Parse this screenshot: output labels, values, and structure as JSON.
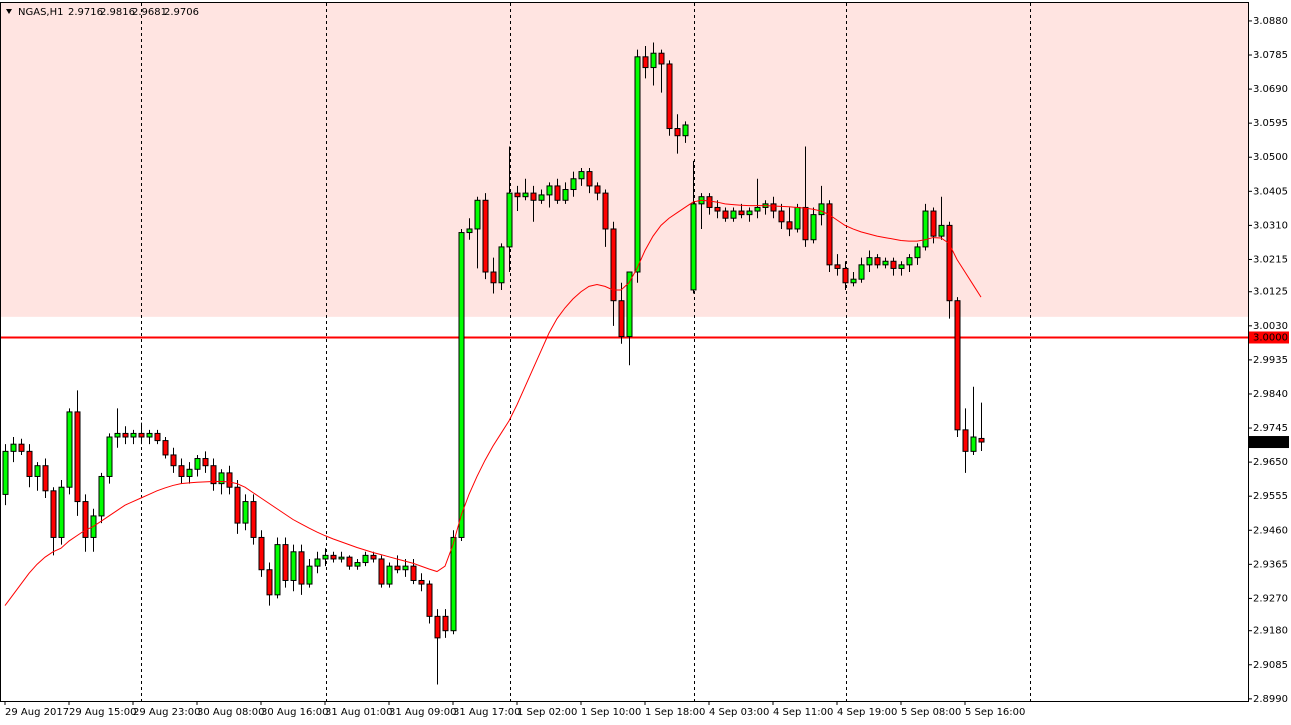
{
  "chart_data": {
    "type": "candlestick",
    "title": "NGAS,H1",
    "ylim": [
      2.8984,
      3.093
    ],
    "yticks": [
      {
        "value": 3.088,
        "label": "3.0880"
      },
      {
        "value": 3.0785,
        "label": "3.0785"
      },
      {
        "value": 3.069,
        "label": "3.0690"
      },
      {
        "value": 3.0595,
        "label": "3.0595"
      },
      {
        "value": 3.05,
        "label": "3.0500"
      },
      {
        "value": 3.0405,
        "label": "3.0405"
      },
      {
        "value": 3.031,
        "label": "3.0310"
      },
      {
        "value": 3.0215,
        "label": "3.0215"
      },
      {
        "value": 3.0125,
        "label": "3.0125"
      },
      {
        "value": 3.003,
        "label": "3.0030"
      },
      {
        "value": 2.9935,
        "label": "2.9935"
      },
      {
        "value": 2.984,
        "label": "2.9840"
      },
      {
        "value": 2.9745,
        "label": "2.9745"
      },
      {
        "value": 2.965,
        "label": "2.9650"
      },
      {
        "value": 2.9555,
        "label": "2.9555"
      },
      {
        "value": 2.946,
        "label": "2.9460"
      },
      {
        "value": 2.9365,
        "label": "2.9365"
      },
      {
        "value": 2.927,
        "label": "2.9270"
      },
      {
        "value": 2.918,
        "label": "2.9180"
      },
      {
        "value": 2.9085,
        "label": "2.9085"
      },
      {
        "value": 2.899,
        "label": "2.8990"
      }
    ],
    "xticks": [
      {
        "value": 0,
        "label": "29 Aug 2017"
      },
      {
        "value": 8,
        "label": "29 Aug 15:00"
      },
      {
        "value": 16,
        "label": "29 Aug 23:00"
      },
      {
        "value": 24,
        "label": "30 Aug 08:00"
      },
      {
        "value": 32,
        "label": "30 Aug 16:00"
      },
      {
        "value": 40,
        "label": "31 Aug 01:00"
      },
      {
        "value": 48,
        "label": "31 Aug 09:00"
      },
      {
        "value": 56,
        "label": "31 Aug 17:00"
      },
      {
        "value": 64,
        "label": "1 Sep 02:00"
      },
      {
        "value": 72,
        "label": "1 Sep 10:00"
      },
      {
        "value": 80,
        "label": "1 Sep 18:00"
      },
      {
        "value": 88,
        "label": "4 Sep 03:00"
      },
      {
        "value": 96,
        "label": "4 Sep 11:00"
      },
      {
        "value": 104,
        "label": "4 Sep 19:00"
      },
      {
        "value": 112,
        "label": "5 Sep 08:00"
      },
      {
        "value": 120,
        "label": "5 Sep 16:00"
      }
    ],
    "up_color": "#00ff00",
    "down_color": "#ff0000",
    "candles": [
      [
        2.956,
        2.97,
        2.953,
        2.968
      ],
      [
        2.968,
        2.972,
        2.965,
        2.97
      ],
      [
        2.97,
        2.9715,
        2.967,
        2.968
      ],
      [
        2.968,
        2.97,
        2.958,
        2.961
      ],
      [
        2.961,
        2.965,
        2.957,
        2.964
      ],
      [
        2.964,
        2.966,
        2.955,
        2.957
      ],
      [
        2.957,
        2.958,
        2.939,
        2.944
      ],
      [
        2.944,
        2.96,
        2.942,
        2.958
      ],
      [
        2.958,
        2.98,
        2.956,
        2.979
      ],
      [
        2.979,
        2.985,
        2.95,
        2.954
      ],
      [
        2.954,
        2.956,
        2.94,
        2.944
      ],
      [
        2.944,
        2.952,
        2.94,
        2.95
      ],
      [
        2.95,
        2.962,
        2.948,
        2.961
      ],
      [
        2.961,
        2.973,
        2.959,
        2.972
      ],
      [
        2.972,
        2.98,
        2.969,
        2.973
      ],
      [
        2.973,
        2.975,
        2.97,
        2.972
      ],
      [
        2.972,
        2.974,
        2.97,
        2.973
      ],
      [
        2.973,
        2.976,
        2.97,
        2.972
      ],
      [
        2.972,
        2.974,
        2.97,
        2.973
      ],
      [
        2.973,
        2.974,
        2.97,
        2.971
      ],
      [
        2.971,
        2.972,
        2.966,
        2.967
      ],
      [
        2.967,
        2.969,
        2.962,
        2.964
      ],
      [
        2.964,
        2.966,
        2.959,
        2.961
      ],
      [
        2.961,
        2.965,
        2.959,
        2.963
      ],
      [
        2.963,
        2.967,
        2.961,
        2.966
      ],
      [
        2.966,
        2.968,
        2.962,
        2.964
      ],
      [
        2.964,
        2.966,
        2.957,
        2.959
      ],
      [
        2.959,
        2.963,
        2.956,
        2.962
      ],
      [
        2.962,
        2.964,
        2.956,
        2.958
      ],
      [
        2.958,
        2.96,
        2.945,
        2.948
      ],
      [
        2.948,
        2.956,
        2.946,
        2.954
      ],
      [
        2.954,
        2.956,
        2.942,
        2.944
      ],
      [
        2.944,
        2.946,
        2.933,
        2.935
      ],
      [
        2.935,
        2.937,
        2.925,
        2.928
      ],
      [
        2.928,
        2.944,
        2.927,
        2.942
      ],
      [
        2.942,
        2.944,
        2.93,
        2.932
      ],
      [
        2.932,
        2.942,
        2.929,
        2.94
      ],
      [
        2.94,
        2.942,
        2.928,
        2.931
      ],
      [
        2.931,
        2.938,
        2.93,
        2.936
      ],
      [
        2.936,
        2.94,
        2.934,
        2.938
      ],
      [
        2.938,
        2.941,
        2.936,
        2.939
      ],
      [
        2.939,
        2.94,
        2.937,
        2.938
      ],
      [
        2.938,
        2.94,
        2.937,
        2.9385
      ],
      [
        2.9385,
        2.939,
        2.935,
        2.936
      ],
      [
        2.936,
        2.938,
        2.935,
        2.937
      ],
      [
        2.937,
        2.94,
        2.936,
        2.939
      ],
      [
        2.939,
        2.94,
        2.937,
        2.938
      ],
      [
        2.938,
        2.939,
        2.93,
        2.931
      ],
      [
        2.931,
        2.937,
        2.93,
        2.936
      ],
      [
        2.936,
        2.939,
        2.934,
        2.935
      ],
      [
        2.935,
        2.938,
        2.933,
        2.936
      ],
      [
        2.936,
        2.938,
        2.931,
        2.932
      ],
      [
        2.932,
        2.934,
        2.929,
        2.931
      ],
      [
        2.931,
        2.932,
        2.92,
        2.922
      ],
      [
        2.922,
        2.924,
        2.903,
        2.916
      ],
      [
        2.922,
        2.924,
        2.916,
        2.918
      ],
      [
        2.918,
        2.946,
        2.917,
        2.944
      ],
      [
        2.944,
        3.03,
        2.943,
        3.029
      ],
      [
        3.029,
        3.033,
        3.027,
        3.03
      ],
      [
        3.03,
        3.039,
        3.019,
        3.038
      ],
      [
        3.038,
        3.04,
        3.016,
        3.018
      ],
      [
        3.018,
        3.022,
        3.012,
        3.015
      ],
      [
        3.015,
        3.026,
        3.013,
        3.025
      ],
      [
        3.025,
        3.053,
        3.018,
        3.04
      ],
      [
        3.04,
        3.042,
        3.035,
        3.039
      ],
      [
        3.039,
        3.044,
        3.038,
        3.04
      ],
      [
        3.04,
        3.042,
        3.032,
        3.038
      ],
      [
        3.038,
        3.041,
        3.037,
        3.0395
      ],
      [
        3.0395,
        3.043,
        3.036,
        3.042
      ],
      [
        3.042,
        3.044,
        3.037,
        3.038
      ],
      [
        3.038,
        3.043,
        3.037,
        3.041
      ],
      [
        3.041,
        3.046,
        3.039,
        3.044
      ],
      [
        3.044,
        3.047,
        3.042,
        3.046
      ],
      [
        3.046,
        3.047,
        3.04,
        3.042
      ],
      [
        3.042,
        3.043,
        3.038,
        3.04
      ],
      [
        3.04,
        3.041,
        3.025,
        3.03
      ],
      [
        3.03,
        3.032,
        3.003,
        3.01
      ],
      [
        3.01,
        3.015,
        2.998,
        3.0
      ],
      [
        3.0,
        3.018,
        2.992,
        3.018
      ],
      [
        3.018,
        3.08,
        3.015,
        3.078
      ],
      [
        3.078,
        3.081,
        3.072,
        3.075
      ],
      [
        3.075,
        3.082,
        3.07,
        3.079
      ],
      [
        3.079,
        3.08,
        3.068,
        3.076
      ],
      [
        3.076,
        3.077,
        3.056,
        3.058
      ],
      [
        3.058,
        3.062,
        3.051,
        3.056
      ],
      [
        3.056,
        3.06,
        3.054,
        3.059
      ],
      [
        3.013,
        3.049,
        3.012,
        3.037
      ],
      [
        3.037,
        3.04,
        3.03,
        3.039
      ],
      [
        3.039,
        3.04,
        3.034,
        3.036
      ],
      [
        3.036,
        3.038,
        3.033,
        3.035
      ],
      [
        3.035,
        3.036,
        3.032,
        3.033
      ],
      [
        3.033,
        3.036,
        3.032,
        3.035
      ],
      [
        3.035,
        3.037,
        3.033,
        3.034
      ],
      [
        3.034,
        3.036,
        3.032,
        3.035
      ],
      [
        3.035,
        3.044,
        3.033,
        3.036
      ],
      [
        3.036,
        3.038,
        3.034,
        3.037
      ],
      [
        3.037,
        3.039,
        3.033,
        3.035
      ],
      [
        3.035,
        3.037,
        3.03,
        3.032
      ],
      [
        3.032,
        3.036,
        3.028,
        3.03
      ],
      [
        3.03,
        3.037,
        3.029,
        3.036
      ],
      [
        3.036,
        3.053,
        3.025,
        3.027
      ],
      [
        3.027,
        3.036,
        3.026,
        3.034
      ],
      [
        3.034,
        3.042,
        3.031,
        3.037
      ],
      [
        3.037,
        3.038,
        3.018,
        3.02
      ],
      [
        3.02,
        3.023,
        3.017,
        3.019
      ],
      [
        3.019,
        3.021,
        3.013,
        3.015
      ],
      [
        3.015,
        3.018,
        3.014,
        3.016
      ],
      [
        3.016,
        3.022,
        3.015,
        3.02
      ],
      [
        3.02,
        3.024,
        3.018,
        3.022
      ],
      [
        3.022,
        3.023,
        3.019,
        3.02
      ],
      [
        3.02,
        3.022,
        3.019,
        3.021
      ],
      [
        3.021,
        3.022,
        3.017,
        3.019
      ],
      [
        3.019,
        3.021,
        3.017,
        3.02
      ],
      [
        3.02,
        3.023,
        3.018,
        3.022
      ],
      [
        3.022,
        3.026,
        3.02,
        3.025
      ],
      [
        3.025,
        3.037,
        3.024,
        3.035
      ],
      [
        3.035,
        3.036,
        3.026,
        3.028
      ],
      [
        3.028,
        3.039,
        3.027,
        3.031
      ],
      [
        3.031,
        3.032,
        3.005,
        3.01
      ],
      [
        3.01,
        3.011,
        2.972,
        2.974
      ],
      [
        2.974,
        2.98,
        2.962,
        2.968
      ],
      [
        2.968,
        2.986,
        2.967,
        2.972
      ],
      [
        2.9716,
        2.9816,
        2.9681,
        2.9706
      ]
    ],
    "moving_average": {
      "color": "#ff0000",
      "values": [
        2.925,
        2.928,
        2.931,
        2.934,
        2.9365,
        2.9385,
        2.94,
        2.941,
        2.943,
        2.9445,
        2.946,
        2.947,
        2.9485,
        2.95,
        2.9515,
        2.953,
        2.954,
        2.955,
        2.956,
        2.957,
        2.9578,
        2.9585,
        2.959,
        2.9592,
        2.9594,
        2.9595,
        2.9596,
        2.9596,
        2.9595,
        2.959,
        2.958,
        2.9565,
        2.955,
        2.9535,
        2.952,
        2.9505,
        2.949,
        2.9478,
        2.9466,
        2.9455,
        2.9445,
        2.9436,
        2.9428,
        2.942,
        2.9412,
        2.9405,
        2.9398,
        2.9392,
        2.9386,
        2.938,
        2.9374,
        2.9368,
        2.936,
        2.9352,
        2.9345,
        2.936,
        2.942,
        2.95,
        2.956,
        2.961,
        2.9655,
        2.9695,
        2.973,
        2.9765,
        2.981,
        2.986,
        2.991,
        2.996,
        3.001,
        3.005,
        3.008,
        3.0105,
        3.0125,
        3.014,
        3.0145,
        3.014,
        3.013,
        3.013,
        3.015,
        3.019,
        3.024,
        3.028,
        3.031,
        3.033,
        3.0345,
        3.036,
        3.0375,
        3.038,
        3.0378,
        3.0375,
        3.037,
        3.0368,
        3.0366,
        3.0365,
        3.0365,
        3.0365,
        3.0364,
        3.0363,
        3.0362,
        3.036,
        3.0358,
        3.0355,
        3.035,
        3.034,
        3.0325,
        3.031,
        3.03,
        3.0292,
        3.0286,
        3.028,
        3.0276,
        3.0272,
        3.0268,
        3.0266,
        3.0266,
        3.027,
        3.0276,
        3.0275,
        3.026,
        3.0215,
        3.018,
        3.0145,
        3.011
      ]
    },
    "shaded_zone": {
      "color": "#ffe4e1",
      "range": [
        3.0055,
        3.093
      ]
    },
    "level": {
      "value": 3.0,
      "label": "3.0000",
      "color": "#ff0000"
    }
  }
}
